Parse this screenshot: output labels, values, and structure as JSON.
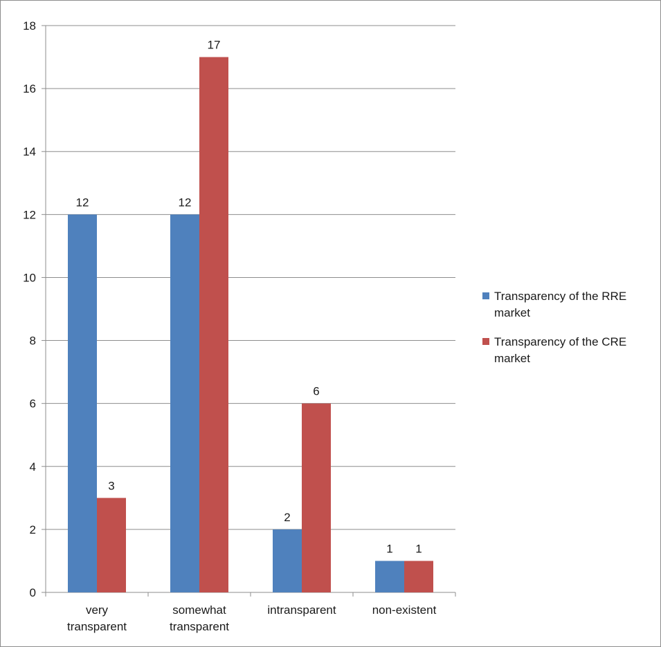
{
  "chart_data": {
    "type": "bar",
    "title": "",
    "xlabel": "",
    "ylabel": "",
    "ylim": [
      0,
      18
    ],
    "yticks": [
      0,
      2,
      4,
      6,
      8,
      10,
      12,
      14,
      16,
      18
    ],
    "grid": true,
    "legend_position": "right",
    "categories": [
      [
        "very",
        "transparent"
      ],
      [
        "somewhat",
        "transparent"
      ],
      [
        "intransparent"
      ],
      [
        "non-existent"
      ]
    ],
    "series": [
      {
        "name": [
          "Transparency of the RRE",
          "market"
        ],
        "color": "#4F81BD",
        "values": [
          12,
          12,
          2,
          1
        ]
      },
      {
        "name": [
          "Transparency of the CRE",
          "market"
        ],
        "color": "#C0504D",
        "values": [
          3,
          17,
          6,
          1
        ]
      }
    ]
  }
}
